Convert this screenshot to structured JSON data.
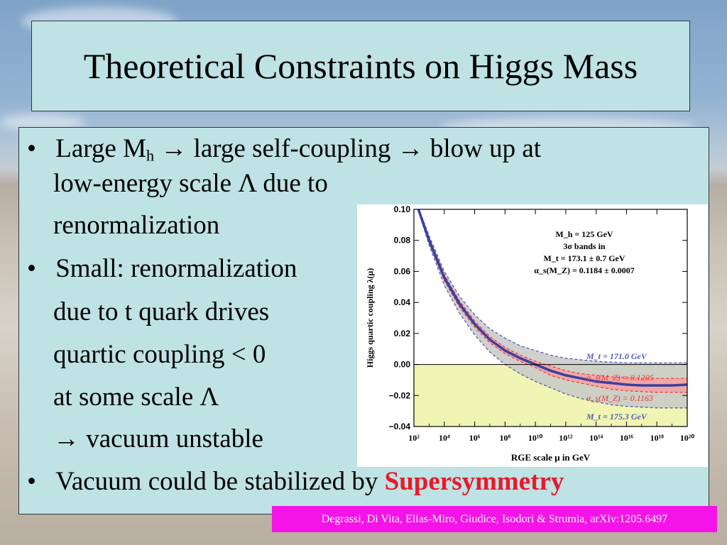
{
  "slide": {
    "title": "Theoretical Constraints on Higgs Mass",
    "bullet_symbol": "•",
    "bullets": [
      {
        "part1": "Large M",
        "sub": "h",
        "part2": " → large self-coupling → blow up at",
        "line2": "low-energy scale Λ due to",
        "line3": "renormalization"
      },
      {
        "line1": "Small: renormalization",
        "line2": "due to t quark drives",
        "line3": "quartic coupling < 0",
        "line4": "at some scale Λ",
        "line5": "→ vacuum unstable"
      },
      {
        "text": "Vacuum could be stabilized by ",
        "emphasis": "Supersymmetry"
      }
    ],
    "citation": "Degrassi, Di Vita, Elias-Miro, Giudice, Isodori & Strumia, arXiv:1205.6497"
  },
  "chart_data": {
    "type": "line",
    "xlabel": "RGE scale μ in GeV",
    "ylabel": "Higgs quartic coupling λ(μ)",
    "xscale": "log10",
    "xlim_log10": [
      2,
      20
    ],
    "ylim": [
      -0.04,
      0.1
    ],
    "x_ticks_log10": [
      2,
      4,
      6,
      8,
      10,
      12,
      14,
      16,
      18,
      20
    ],
    "x_tick_labels": [
      "10²",
      "10⁴",
      "10⁶",
      "10⁸",
      "10¹⁰",
      "10¹²",
      "10¹⁴",
      "10¹⁶",
      "10¹⁸",
      "10²⁰"
    ],
    "y_ticks": [
      -0.04,
      -0.02,
      0.0,
      0.02,
      0.04,
      0.06,
      0.08,
      0.1
    ],
    "y_tick_labels": [
      "−0.04",
      "−0.02",
      "0.00",
      "0.02",
      "0.04",
      "0.06",
      "0.08",
      "0.10"
    ],
    "annotation": [
      "M_h = 125 GeV",
      "3σ bands in",
      "M_t = 173.1 ± 0.7 GeV",
      "α_s(M_Z) = 0.1184 ± 0.0007"
    ],
    "instability_region": {
      "y_from": -0.04,
      "y_to": 0.0,
      "color": "#f0f5b4"
    },
    "zero_line": 0.0,
    "colors": {
      "central": "#3a3fa0",
      "mt_band": "#c8c8c8",
      "alpha_band": "#f6a0a0",
      "mt_edge": "#5560b0",
      "alpha_edge": "#e83a3a"
    },
    "series": [
      {
        "name": "central",
        "x_log10": [
          2.3,
          3,
          4,
          5,
          6,
          7,
          8,
          9,
          10,
          11,
          12,
          13,
          14,
          15,
          16,
          17,
          18,
          19,
          20
        ],
        "y": [
          0.1,
          0.08,
          0.056,
          0.039,
          0.026,
          0.016,
          0.009,
          0.004,
          0.0,
          -0.004,
          -0.007,
          -0.009,
          -0.011,
          -0.012,
          -0.013,
          -0.0135,
          -0.0135,
          -0.0135,
          -0.013
        ]
      },
      {
        "name": "M_t = 171.0 GeV",
        "x_log10": [
          2.3,
          3,
          4,
          5,
          6,
          7,
          8,
          9,
          10,
          11,
          12,
          13,
          14,
          15,
          16,
          17,
          18,
          19,
          20
        ],
        "y": [
          0.101,
          0.083,
          0.06,
          0.044,
          0.032,
          0.023,
          0.017,
          0.012,
          0.009,
          0.006,
          0.004,
          0.003,
          0.002,
          0.0015,
          0.001,
          0.001,
          0.001,
          0.001,
          0.001
        ]
      },
      {
        "name": "M_t = 175.3 GeV",
        "x_log10": [
          2.3,
          3,
          4,
          5,
          6,
          7,
          8,
          9,
          10,
          11,
          12,
          13,
          14,
          15,
          16,
          17,
          18,
          19,
          20
        ],
        "y": [
          0.099,
          0.077,
          0.051,
          0.033,
          0.019,
          0.008,
          0.0,
          -0.006,
          -0.011,
          -0.015,
          -0.019,
          -0.022,
          -0.024,
          -0.026,
          -0.027,
          -0.0275,
          -0.028,
          -0.028,
          -0.028
        ]
      },
      {
        "name": "α_s(M_Z) = 0.1205",
        "x_log10": [
          2.3,
          3,
          4,
          5,
          6,
          7,
          8,
          9,
          10,
          11,
          12,
          13,
          14,
          15,
          16,
          17,
          18,
          19,
          20
        ],
        "y": [
          0.1005,
          0.0815,
          0.058,
          0.041,
          0.028,
          0.018,
          0.011,
          0.006,
          0.002,
          -0.001,
          -0.004,
          -0.006,
          -0.007,
          -0.008,
          -0.0085,
          -0.009,
          -0.009,
          -0.009,
          -0.009
        ]
      },
      {
        "name": "α_s(M_Z) = 0.1163",
        "x_log10": [
          2.3,
          3,
          4,
          5,
          6,
          7,
          8,
          9,
          10,
          11,
          12,
          13,
          14,
          15,
          16,
          17,
          18,
          19,
          20
        ],
        "y": [
          0.0995,
          0.0785,
          0.054,
          0.037,
          0.024,
          0.014,
          0.007,
          0.002,
          -0.002,
          -0.007,
          -0.01,
          -0.012,
          -0.014,
          -0.016,
          -0.017,
          -0.0175,
          -0.018,
          -0.018,
          -0.018
        ]
      }
    ]
  }
}
